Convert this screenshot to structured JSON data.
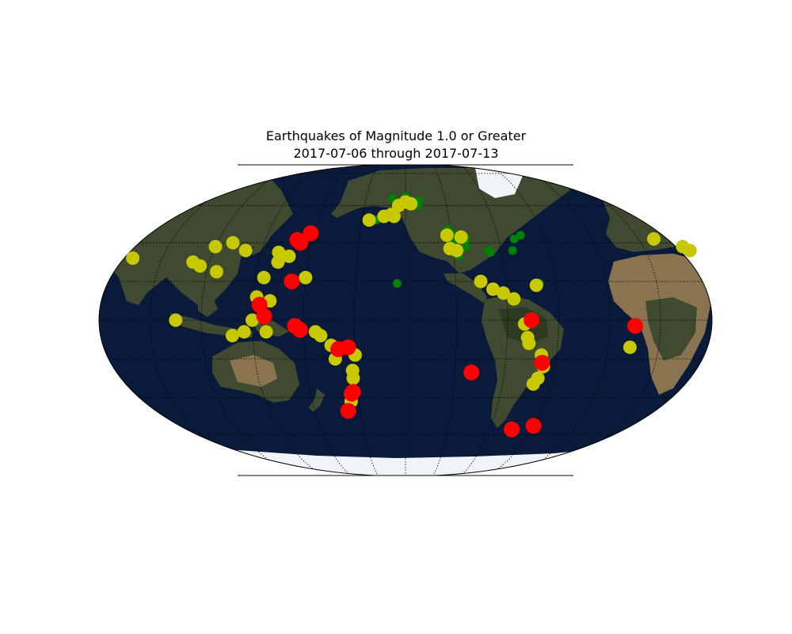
{
  "figure": {
    "title_line1": "Earthquakes of Magnitude 1.0 or Greater",
    "title_line2": "2017-07-06 through 2017-07-13"
  },
  "colors": {
    "ocean": "#0a1a3a",
    "land": "#3f4a30",
    "desert": "#8a7450",
    "ice": "#f0f4f8",
    "magnitude_low": "#008000",
    "magnitude_mid": "#c8c800",
    "magnitude_high": "#ff0000"
  },
  "map": {
    "projection": "Robinson",
    "central_longitude": -150,
    "background": "satellite imagery",
    "graticule": "dotted"
  },
  "chart_data": {
    "type": "scatter",
    "x_field": "longitude",
    "y_field": "latitude",
    "size_and_color_field": "magnitude class",
    "points": [
      {
        "lon": 140.5,
        "lat": 41.5,
        "class": "high"
      },
      {
        "lon": 143,
        "lat": 40,
        "class": "high"
      },
      {
        "lon": 148,
        "lat": 45,
        "class": "high"
      },
      {
        "lon": 142,
        "lat": 20,
        "class": "high"
      },
      {
        "lon": 124,
        "lat": 8,
        "class": "high"
      },
      {
        "lon": 127,
        "lat": 2,
        "class": "high"
      },
      {
        "lon": 145,
        "lat": -3,
        "class": "high"
      },
      {
        "lon": 148,
        "lat": -5,
        "class": "high"
      },
      {
        "lon": 170,
        "lat": -15,
        "class": "high"
      },
      {
        "lon": 176,
        "lat": -14,
        "class": "high"
      },
      {
        "lon": 177,
        "lat": -37,
        "class": "high"
      },
      {
        "lon": 176,
        "lat": -38,
        "class": "high"
      },
      {
        "lon": 172,
        "lat": -47,
        "class": "high"
      },
      {
        "lon": -76,
        "lat": 0,
        "class": "high"
      },
      {
        "lon": -110,
        "lat": -27,
        "class": "high"
      },
      {
        "lon": -68,
        "lat": -22,
        "class": "high"
      },
      {
        "lon": -74,
        "lat": -57,
        "class": "high"
      },
      {
        "lon": -60,
        "lat": -55,
        "class": "high"
      },
      {
        "lon": -15,
        "lat": -3,
        "class": "high"
      },
      {
        "lon": -158,
        "lat": 54,
        "class": "mid"
      },
      {
        "lon": -175,
        "lat": 52,
        "class": "mid"
      },
      {
        "lon": 90,
        "lat": 38,
        "class": "mid"
      },
      {
        "lon": 100,
        "lat": 40,
        "class": "mid"
      },
      {
        "lon": 110,
        "lat": 36,
        "class": "mid"
      },
      {
        "lon": 80,
        "lat": 30,
        "class": "mid"
      },
      {
        "lon": 85,
        "lat": 28,
        "class": "mid"
      },
      {
        "lon": 96,
        "lat": 25,
        "class": "mid"
      },
      {
        "lon": 75,
        "lat": 0,
        "class": "mid"
      },
      {
        "lon": 120,
        "lat": 0,
        "class": "mid"
      },
      {
        "lon": 115,
        "lat": -6,
        "class": "mid"
      },
      {
        "lon": 108,
        "lat": -8,
        "class": "mid"
      },
      {
        "lon": 128,
        "lat": -6,
        "class": "mid"
      },
      {
        "lon": 132,
        "lat": 30,
        "class": "mid"
      },
      {
        "lon": 138,
        "lat": 33,
        "class": "mid"
      },
      {
        "lon": 131,
        "lat": 35,
        "class": "mid"
      },
      {
        "lon": 125,
        "lat": 22,
        "class": "mid"
      },
      {
        "lon": 130,
        "lat": 10,
        "class": "mid"
      },
      {
        "lon": 122,
        "lat": 12,
        "class": "mid"
      },
      {
        "lon": 157,
        "lat": -6,
        "class": "mid"
      },
      {
        "lon": 160,
        "lat": -8,
        "class": "mid"
      },
      {
        "lon": 166,
        "lat": -13,
        "class": "mid"
      },
      {
        "lon": 168,
        "lat": -20,
        "class": "mid"
      },
      {
        "lon": 180,
        "lat": -18,
        "class": "mid"
      },
      {
        "lon": 178,
        "lat": -26,
        "class": "mid"
      },
      {
        "lon": 178,
        "lat": -30,
        "class": "mid"
      },
      {
        "lon": 175,
        "lat": -42,
        "class": "mid"
      },
      {
        "lon": 150,
        "lat": 22,
        "class": "mid"
      },
      {
        "lon": -118,
        "lat": 36,
        "class": "mid"
      },
      {
        "lon": -114,
        "lat": 43,
        "class": "mid"
      },
      {
        "lon": -105,
        "lat": 20,
        "class": "mid"
      },
      {
        "lon": -98,
        "lat": 16,
        "class": "mid"
      },
      {
        "lon": -92,
        "lat": 14,
        "class": "mid"
      },
      {
        "lon": -86,
        "lat": 11,
        "class": "mid"
      },
      {
        "lon": -72,
        "lat": 18,
        "class": "mid"
      },
      {
        "lon": -80,
        "lat": -2,
        "class": "mid"
      },
      {
        "lon": -78,
        "lat": -9,
        "class": "mid"
      },
      {
        "lon": -77,
        "lat": -12,
        "class": "mid"
      },
      {
        "lon": -69,
        "lat": -18,
        "class": "mid"
      },
      {
        "lon": -67,
        "lat": -24,
        "class": "mid"
      },
      {
        "lon": -69,
        "lat": -30,
        "class": "mid"
      },
      {
        "lon": -71,
        "lat": -33,
        "class": "mid"
      },
      {
        "lon": -17,
        "lat": -14,
        "class": "mid"
      },
      {
        "lon": 25,
        "lat": 38,
        "class": "mid"
      },
      {
        "lon": 10,
        "lat": 42,
        "class": "mid"
      },
      {
        "lon": 28,
        "lat": 36,
        "class": "mid"
      },
      {
        "lon": 42,
        "lat": 32,
        "class": "mid"
      },
      {
        "lon": -150,
        "lat": 62,
        "class": "mid"
      },
      {
        "lon": -146,
        "lat": 61,
        "class": "mid"
      },
      {
        "lon": -165,
        "lat": 54,
        "class": "mid"
      },
      {
        "lon": -160,
        "lat": 55,
        "class": "mid"
      },
      {
        "lon": -123,
        "lat": 44,
        "class": "mid"
      },
      {
        "lon": -122,
        "lat": 37,
        "class": "mid"
      },
      {
        "lon": -155,
        "lat": 60,
        "class": "mid"
      },
      {
        "lon": -148,
        "lat": 63,
        "class": "low"
      },
      {
        "lon": -152,
        "lat": 61,
        "class": "low"
      },
      {
        "lon": -145,
        "lat": 62,
        "class": "low"
      },
      {
        "lon": -141,
        "lat": 60,
        "class": "low"
      },
      {
        "lon": -156,
        "lat": 58,
        "class": "low"
      },
      {
        "lon": -160,
        "lat": 64,
        "class": "low"
      },
      {
        "lon": -150,
        "lat": 65,
        "class": "low"
      },
      {
        "lon": -140,
        "lat": 63,
        "class": "low"
      },
      {
        "lon": -167,
        "lat": 53,
        "class": "low"
      },
      {
        "lon": -170,
        "lat": 52,
        "class": "low"
      },
      {
        "lon": -155,
        "lat": 19,
        "class": "low"
      },
      {
        "lon": -122,
        "lat": 47,
        "class": "low"
      },
      {
        "lon": -120,
        "lat": 45,
        "class": "low"
      },
      {
        "lon": -117,
        "lat": 33,
        "class": "low"
      },
      {
        "lon": -118,
        "lat": 35,
        "class": "low"
      },
      {
        "lon": -121,
        "lat": 38,
        "class": "low"
      },
      {
        "lon": -116,
        "lat": 36,
        "class": "low"
      },
      {
        "lon": -119,
        "lat": 40,
        "class": "low"
      },
      {
        "lon": -112,
        "lat": 38,
        "class": "low"
      },
      {
        "lon": -111,
        "lat": 42,
        "class": "low"
      },
      {
        "lon": -98,
        "lat": 36,
        "class": "low"
      },
      {
        "lon": -97,
        "lat": 35,
        "class": "low"
      },
      {
        "lon": -80,
        "lat": 42,
        "class": "low"
      },
      {
        "lon": -75,
        "lat": 44,
        "class": "low"
      },
      {
        "lon": -83,
        "lat": 36,
        "class": "low"
      },
      {
        "lon": -70,
        "lat": 19,
        "class": "low"
      }
    ]
  }
}
